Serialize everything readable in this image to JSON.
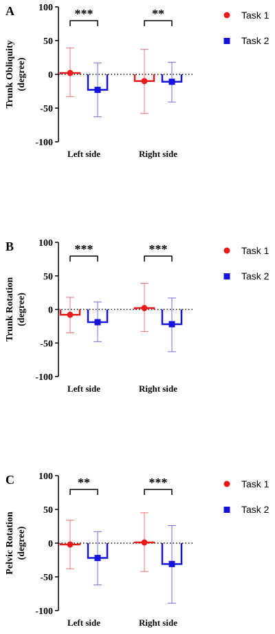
{
  "colors": {
    "task1": "#e8191a",
    "task1_err": "#ec7070",
    "task2": "#1414dc",
    "task2_err": "#6d6dea",
    "axis": "#000000"
  },
  "legend": {
    "task1": "Task 1",
    "task2": "Task 2"
  },
  "chart_data": [
    {
      "type": "bar",
      "panel": "A",
      "ylabel": "Trunk Obliquity\n(degree)",
      "ylim": [
        -100,
        100
      ],
      "yticks": [
        "100",
        "50",
        "0",
        "-50",
        "-100"
      ],
      "categories": [
        "Left side",
        "Right side"
      ],
      "series": [
        {
          "name": "Task 1",
          "values": [
            2,
            -10
          ],
          "err_low": [
            -33,
            -58
          ],
          "err_high": [
            39,
            37
          ]
        },
        {
          "name": "Task 2",
          "values": [
            -23,
            -11
          ],
          "err_low": [
            -63,
            -41
          ],
          "err_high": [
            17,
            18
          ]
        }
      ],
      "significance": [
        "***",
        "**"
      ]
    },
    {
      "type": "bar",
      "panel": "B",
      "ylabel": "Trunk Rotation\n(degree)",
      "ylim": [
        -100,
        100
      ],
      "yticks": [
        "100",
        "50",
        "0",
        "-50",
        "-100"
      ],
      "categories": [
        "Left side",
        "Right side"
      ],
      "series": [
        {
          "name": "Task 1",
          "values": [
            -8,
            2
          ],
          "err_low": [
            -35,
            -33
          ],
          "err_high": [
            18,
            39
          ]
        },
        {
          "name": "Task 2",
          "values": [
            -19,
            -22
          ],
          "err_low": [
            -48,
            -63
          ],
          "err_high": [
            11,
            17
          ]
        }
      ],
      "significance": [
        "***",
        "***"
      ]
    },
    {
      "type": "bar",
      "panel": "C",
      "ylabel": "Pelvic Rotation\n(degree)",
      "ylim": [
        -100,
        100
      ],
      "yticks": [
        "100",
        "50",
        "0",
        "-50",
        "-100"
      ],
      "categories": [
        "Left side",
        "Right side"
      ],
      "series": [
        {
          "name": "Task 1",
          "values": [
            -2,
            1
          ],
          "err_low": [
            -38,
            -42
          ],
          "err_high": [
            34,
            45
          ]
        },
        {
          "name": "Task 2",
          "values": [
            -22,
            -31
          ],
          "err_low": [
            -62,
            -89
          ],
          "err_high": [
            17,
            26
          ]
        }
      ],
      "significance": [
        "**",
        "***"
      ]
    }
  ]
}
